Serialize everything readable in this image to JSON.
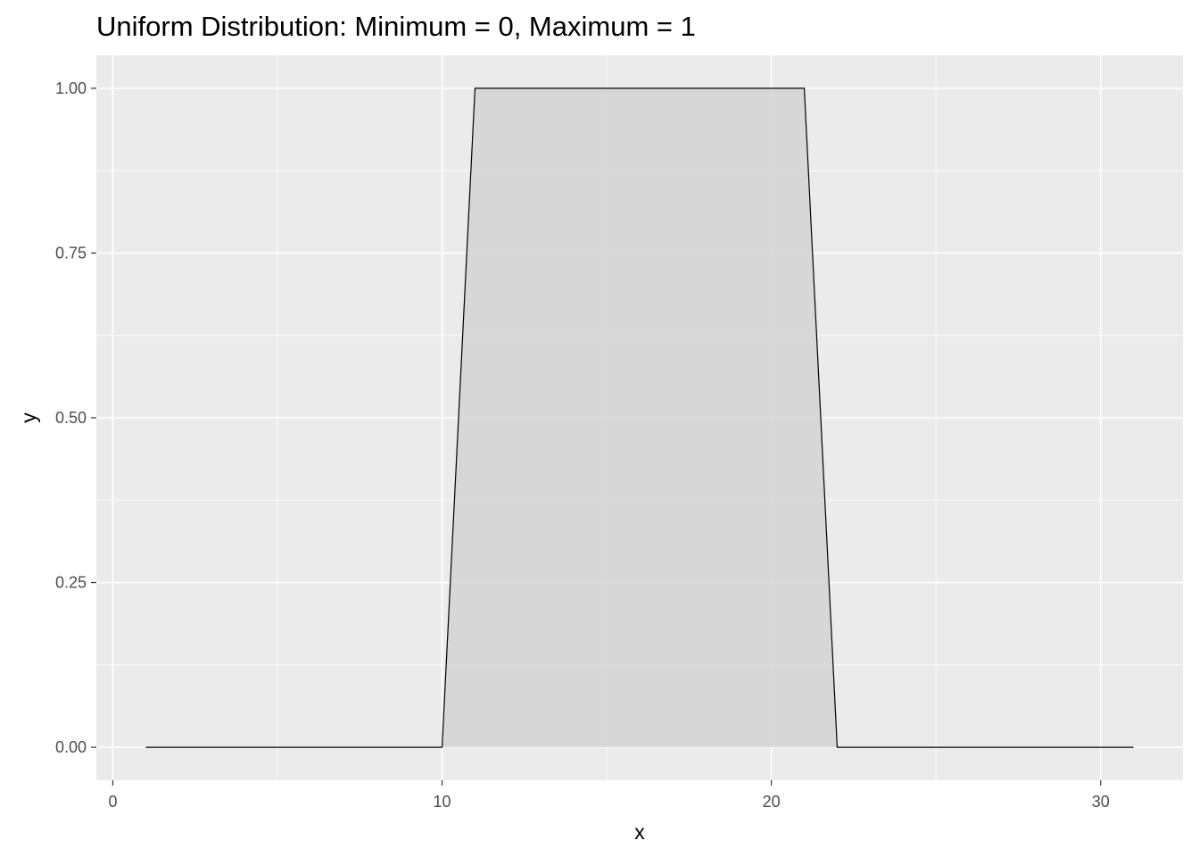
{
  "chart_data": {
    "type": "area",
    "title": "Uniform Distribution: Minimum = 0, Maximum = 1",
    "xlabel": "x",
    "ylabel": "y",
    "xlim": [
      -0.5,
      32.5
    ],
    "ylim": [
      -0.05,
      1.05
    ],
    "x_ticks": [
      0,
      10,
      20,
      30
    ],
    "x_tick_labels": [
      "0",
      "10",
      "20",
      "30"
    ],
    "y_ticks": [
      0,
      0.25,
      0.5,
      0.75,
      1.0
    ],
    "y_tick_labels": [
      "0.00",
      "0.25",
      "0.50",
      "0.75",
      "1.00"
    ],
    "grid": true,
    "series": [
      {
        "x": [
          1,
          2,
          3,
          4,
          5,
          6,
          7,
          8,
          9,
          10,
          11,
          12,
          13,
          14,
          15,
          16,
          17,
          18,
          19,
          20,
          21,
          22,
          23,
          24,
          25,
          26,
          27,
          28,
          29,
          30,
          31
        ],
        "y": [
          0,
          0,
          0,
          0,
          0,
          0,
          0,
          0,
          0,
          0,
          1,
          1,
          1,
          1,
          1,
          1,
          1,
          1,
          1,
          1,
          1,
          0,
          0,
          0,
          0,
          0,
          0,
          0,
          0,
          0,
          0
        ]
      }
    ],
    "colors": {
      "panel": "#ebebeb",
      "grid": "#ffffff",
      "fill": "#d3d3d3",
      "line": "#000000",
      "tick": "#333333"
    }
  }
}
